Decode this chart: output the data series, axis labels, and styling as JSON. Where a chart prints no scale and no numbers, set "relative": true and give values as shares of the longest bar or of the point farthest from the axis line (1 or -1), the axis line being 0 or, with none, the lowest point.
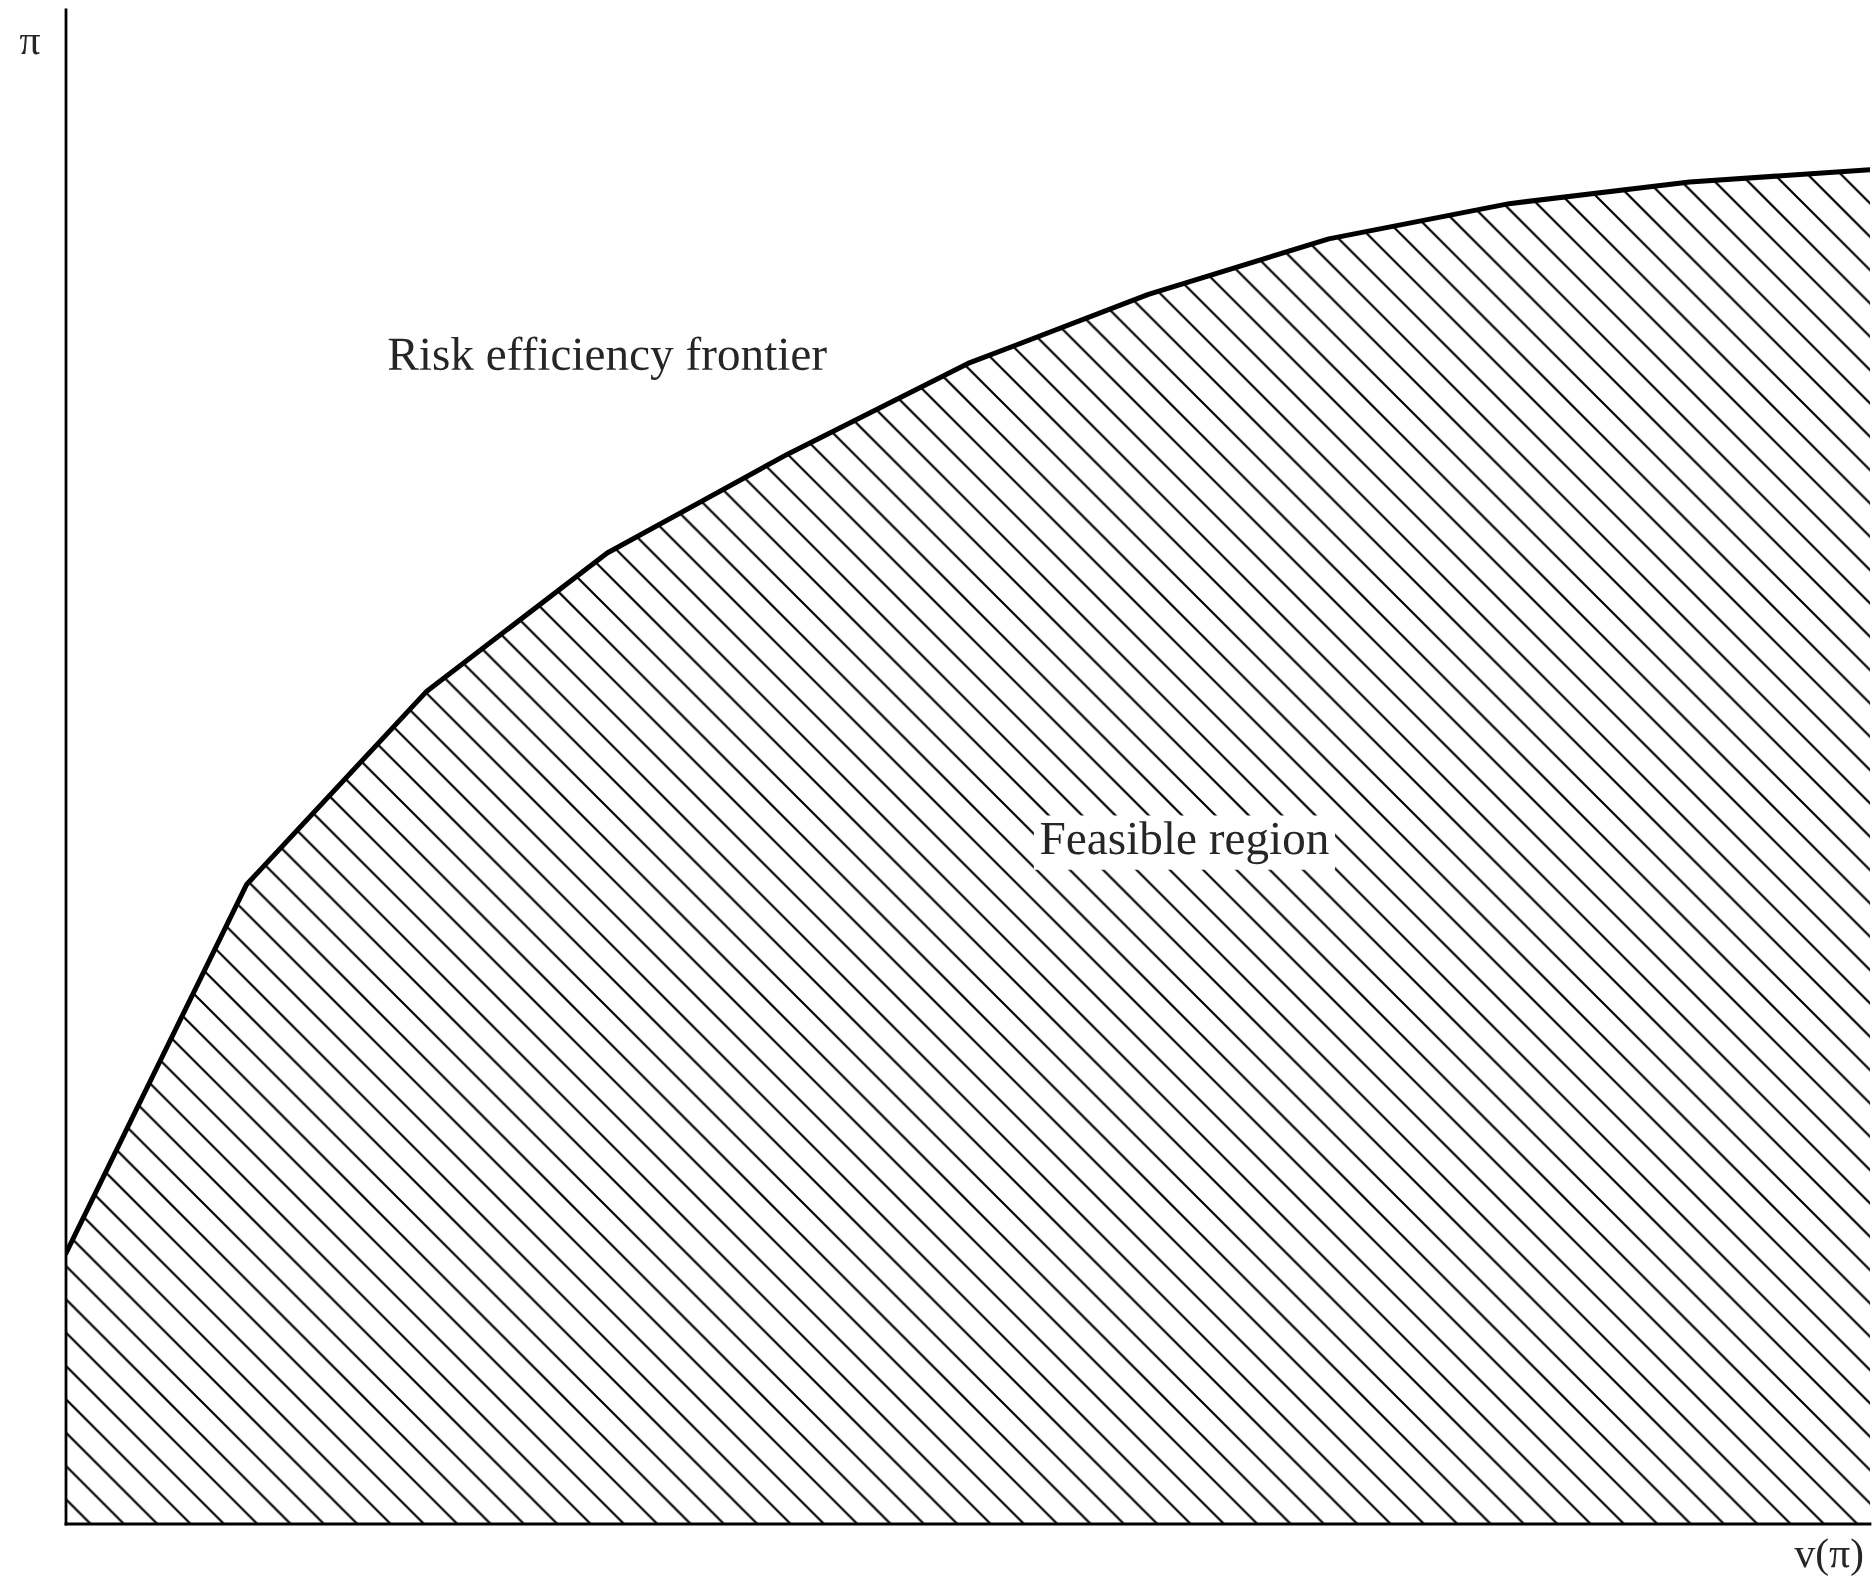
{
  "chart_data": {
    "type": "area",
    "relative": true,
    "xlabel": "v(π)",
    "ylabel": "π",
    "categories": [
      null,
      null,
      null,
      null,
      null,
      null,
      null,
      null,
      null,
      null,
      null
    ],
    "series": [
      {
        "color": "#000000",
        "values": [
          0.2,
          0.472,
          0.615,
          0.717,
          0.79,
          0.857,
          0.908,
          0.949,
          0.975,
          0.991,
          1.0
        ]
      }
    ],
    "annotations": [
      "Risk efficiency frontier",
      "Feasible region"
    ],
    "grid": false,
    "legend": false
  }
}
